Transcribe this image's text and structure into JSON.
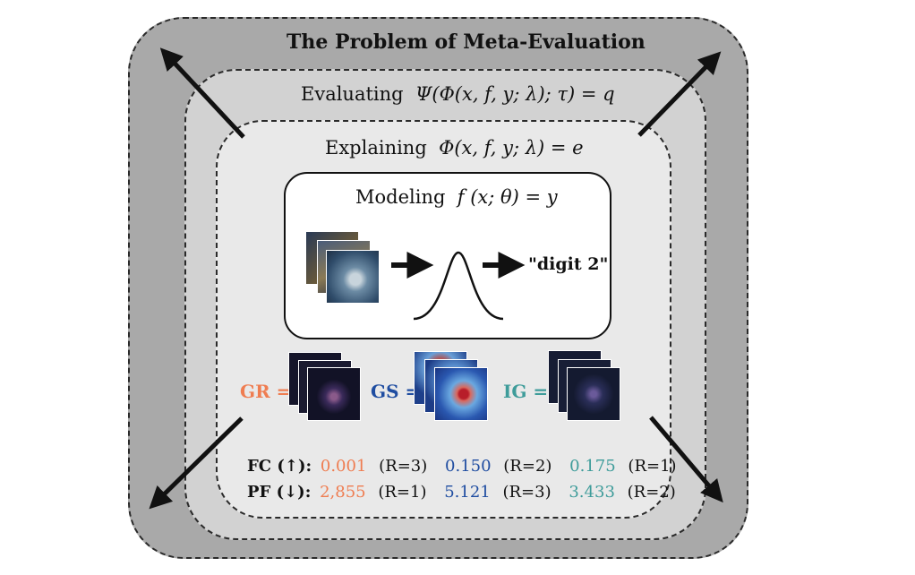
{
  "title": "The Problem of Meta-Evaluation",
  "evaluating": {
    "label": "Evaluating",
    "formula": "Ψ(Φ(x, f, y; λ); τ) = q"
  },
  "explaining": {
    "label": "Explaining",
    "formula": "Φ(x, f, y; λ) = e"
  },
  "modeling": {
    "label": "Modeling",
    "formula": "f (x; θ) = y",
    "output": "\"digit 2\""
  },
  "attributions": [
    {
      "label": "GR =",
      "color": "#ef7d51"
    },
    {
      "label": "GS =",
      "color": "#1f4da1"
    },
    {
      "label": "IG =",
      "color": "#3e9c9a"
    }
  ],
  "metrics": [
    {
      "label": "FC (↑):",
      "values": [
        {
          "value": "0.001",
          "rank": "(R=3)"
        },
        {
          "value": "0.150",
          "rank": "(R=2)"
        },
        {
          "value": "0.175",
          "rank": "(R=1)"
        }
      ]
    },
    {
      "label": "PF (↓):",
      "values": [
        {
          "value": "2,855",
          "rank": "(R=1)"
        },
        {
          "value": "5.121",
          "rank": "(R=3)"
        },
        {
          "value": "3.433",
          "rank": "(R=2)"
        }
      ]
    }
  ],
  "icons": [
    "expand-arrow-icon",
    "bell-curve-icon",
    "right-arrow-icon",
    "image-stack-icon",
    "saliency-map-icon"
  ]
}
